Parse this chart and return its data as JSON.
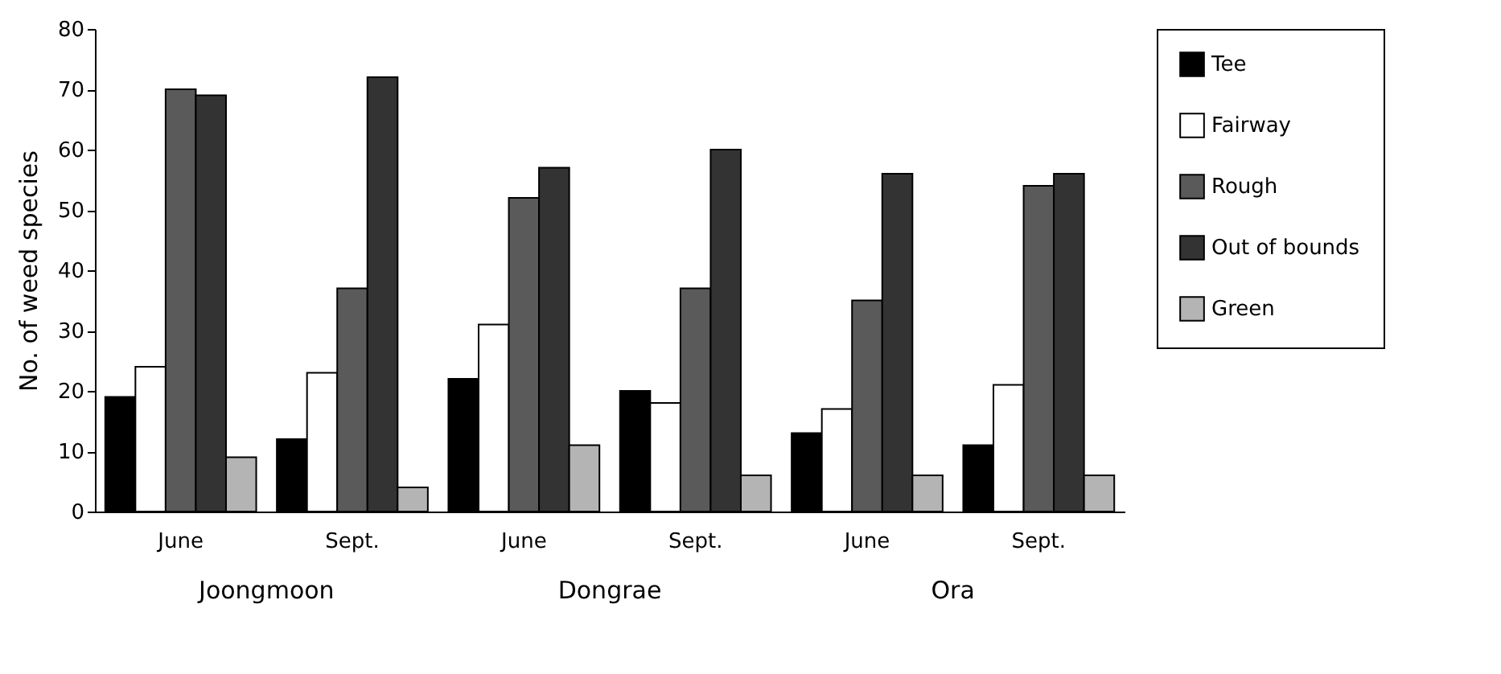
{
  "chart_data": {
    "type": "bar",
    "ylabel": "No. of weed species",
    "categories": [
      "June",
      "Sept.",
      "June",
      "Sept.",
      "June",
      "Sept."
    ],
    "series": [
      {
        "name": "Tee",
        "color": "#000000",
        "values": [
          19,
          12,
          22,
          20,
          13,
          11
        ]
      },
      {
        "name": "Fairway",
        "color": "#ffffff",
        "values": [
          24,
          23,
          31,
          18,
          17,
          21
        ]
      },
      {
        "name": "Rough",
        "color": "#5a5a5a",
        "values": [
          70,
          37,
          52,
          37,
          35,
          54
        ]
      },
      {
        "name": "Out of bounds",
        "color": "#333333",
        "values": [
          69,
          72,
          57,
          60,
          56,
          56
        ]
      },
      {
        "name": "Green",
        "color": "#b4b4b4",
        "values": [
          9,
          4,
          11,
          6,
          6,
          6
        ]
      }
    ],
    "annotations": [
      "Joongmoon",
      "Dongrae",
      "Ora"
    ],
    "ylim": [
      0,
      80
    ],
    "yticks": [
      0,
      10,
      20,
      30,
      40,
      50,
      60,
      70,
      80
    ],
    "grid": false,
    "legend": "right"
  }
}
